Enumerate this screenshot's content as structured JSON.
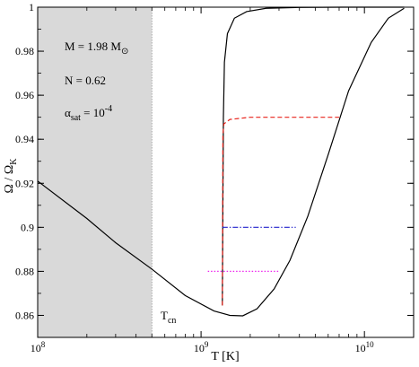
{
  "chart_data": {
    "type": "line",
    "xscale": "log",
    "xlim": [
      100000000.0,
      20000000000.0
    ],
    "ylim": [
      0.85,
      1.0
    ],
    "xlabel": "T [K]",
    "ylabel": "Ω / Ω",
    "ylabel_sub": "K",
    "x_ticks": [
      {
        "value": 100000000.0,
        "base": "10",
        "exp": "8"
      },
      {
        "value": 1000000000.0,
        "base": "10",
        "exp": "9"
      },
      {
        "value": 10000000000.0,
        "base": "10",
        "exp": "10"
      }
    ],
    "y_ticks": [
      "0.86",
      "0.88",
      "0.9",
      "0.92",
      "0.94",
      "0.96",
      "0.98",
      "1"
    ],
    "shaded_region": {
      "x_from": 100000000.0,
      "x_to": 500000000.0,
      "color": "#d9d9d9"
    },
    "annotations": {
      "mass": "M = 1.98 M",
      "mass_symbol": "⊙",
      "n": "N = 0.62",
      "alpha": "α",
      "alpha_sub": "sat",
      "alpha_eq": " = 10",
      "alpha_exp": "-4",
      "tcn": "T",
      "tcn_sub": "cn"
    },
    "series": [
      {
        "style": "solid",
        "color": "#000000",
        "points": [
          [
            100000000.0,
            0.921
          ],
          [
            200000000.0,
            0.904
          ],
          [
            300000000.0,
            0.893
          ],
          [
            500000000.0,
            0.881
          ],
          [
            800000000.0,
            0.869
          ],
          [
            1200000000.0,
            0.862
          ],
          [
            1500000000.0,
            0.86
          ],
          [
            1800000000.0,
            0.8598
          ],
          [
            2200000000.0,
            0.863
          ],
          [
            2800000000.0,
            0.872
          ],
          [
            3500000000.0,
            0.885
          ],
          [
            4500000000.0,
            0.905
          ],
          [
            6000000000.0,
            0.933
          ],
          [
            8000000000.0,
            0.962
          ],
          [
            11000000000.0,
            0.984
          ],
          [
            14000000000.0,
            0.995
          ],
          [
            17500000000.0,
            0.9995
          ]
        ]
      },
      {
        "style": "solid",
        "color": "#000000",
        "points": [
          [
            1350000000.0,
            0.8645
          ],
          [
            1360000000.0,
            0.91
          ],
          [
            1370000000.0,
            0.95
          ],
          [
            1390000000.0,
            0.975
          ],
          [
            1450000000.0,
            0.988
          ],
          [
            1600000000.0,
            0.995
          ],
          [
            1900000000.0,
            0.998
          ],
          [
            2500000000.0,
            0.9995
          ],
          [
            4000000000.0,
            0.9999
          ],
          [
            8000000000.0,
            1.0
          ],
          [
            17500000000.0,
            1.0
          ]
        ]
      },
      {
        "style": "dashed",
        "color": "#e8231b",
        "points": [
          [
            1350000000.0,
            0.8645
          ],
          [
            1360000000.0,
            0.942
          ],
          [
            1380000000.0,
            0.947
          ],
          [
            1500000000.0,
            0.949
          ],
          [
            2000000000.0,
            0.95
          ],
          [
            7000000000.0,
            0.95
          ]
        ]
      },
      {
        "style": "dashdot",
        "color": "#2222cc",
        "points": [
          [
            1350000000.0,
            0.9
          ],
          [
            3800000000.0,
            0.9
          ]
        ]
      },
      {
        "style": "dotted",
        "color": "#ee22ee",
        "points": [
          [
            1100000000.0,
            0.88
          ],
          [
            3000000000.0,
            0.88
          ]
        ]
      }
    ]
  }
}
